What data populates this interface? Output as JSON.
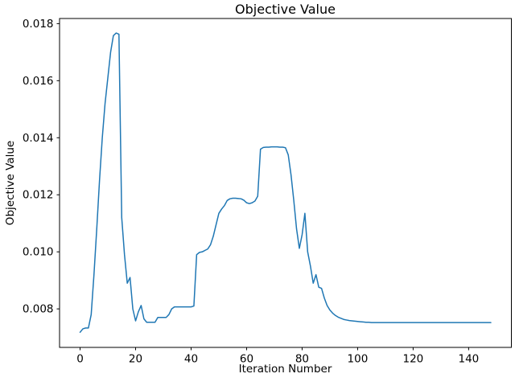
{
  "figure": {
    "background": "#ffffff"
  },
  "chart_data": {
    "type": "line",
    "title": "Objective Value",
    "xlabel": "Iteration Number",
    "ylabel": "Objective Value",
    "grid": false,
    "legend": null,
    "xlim": [
      -7.4,
      155.4
    ],
    "ylim": [
      0.00665,
      0.01818
    ],
    "xticks": [
      0,
      20,
      40,
      60,
      80,
      100,
      120,
      140
    ],
    "xtick_labels": [
      "0",
      "20",
      "40",
      "60",
      "80",
      "100",
      "120",
      "140"
    ],
    "yticks": [
      0.008,
      0.01,
      0.012,
      0.014,
      0.016,
      0.018
    ],
    "ytick_labels": [
      "0.008",
      "0.010",
      "0.012",
      "0.014",
      "0.016",
      "0.018"
    ],
    "series": [
      {
        "name": "objective-value",
        "color": "#1f77b4",
        "x_start": 0,
        "x_step": 1,
        "values": [
          0.00718,
          0.0073,
          0.00733,
          0.00733,
          0.0078,
          0.0092,
          0.0108,
          0.0125,
          0.014,
          0.0152,
          0.0161,
          0.017,
          0.01758,
          0.01767,
          0.01763,
          0.0112,
          0.0099,
          0.0089,
          0.0091,
          0.008,
          0.00758,
          0.0079,
          0.00812,
          0.00765,
          0.00753,
          0.00753,
          0.00753,
          0.00753,
          0.0077,
          0.0077,
          0.0077,
          0.0077,
          0.0078,
          0.008,
          0.00807,
          0.00807,
          0.00807,
          0.00807,
          0.00807,
          0.00807,
          0.00807,
          0.0081,
          0.0099,
          0.00998,
          0.01,
          0.01005,
          0.0101,
          0.01025,
          0.01055,
          0.01095,
          0.01135,
          0.0115,
          0.01162,
          0.0118,
          0.01186,
          0.01188,
          0.01188,
          0.01187,
          0.01186,
          0.01181,
          0.01172,
          0.01169,
          0.01172,
          0.01178,
          0.01195,
          0.0136,
          0.01366,
          0.01367,
          0.01367,
          0.01368,
          0.01368,
          0.01368,
          0.01367,
          0.01367,
          0.01365,
          0.0134,
          0.0127,
          0.0118,
          0.0108,
          0.01012,
          0.0106,
          0.01135,
          0.01,
          0.0095,
          0.0089,
          0.0092,
          0.00876,
          0.00872,
          0.00838,
          0.00812,
          0.00796,
          0.00785,
          0.00777,
          0.00771,
          0.00767,
          0.00763,
          0.00761,
          0.00759,
          0.00758,
          0.00757,
          0.00756,
          0.00755,
          0.00754,
          0.00753,
          0.00753,
          0.00752,
          0.00752,
          0.00752,
          0.00752,
          0.00752,
          0.00752,
          0.00752,
          0.00752,
          0.00752,
          0.00752,
          0.00752,
          0.00752,
          0.00752,
          0.00752,
          0.00752,
          0.00752,
          0.00752,
          0.00752,
          0.00752,
          0.00752,
          0.00752,
          0.00752,
          0.00752,
          0.00752,
          0.00752,
          0.00752,
          0.00752,
          0.00752,
          0.00752,
          0.00752,
          0.00752,
          0.00752,
          0.00752,
          0.00752,
          0.00752,
          0.00752,
          0.00752,
          0.00752,
          0.00752,
          0.00752,
          0.00752,
          0.00752,
          0.00752,
          0.00752
        ]
      }
    ]
  }
}
